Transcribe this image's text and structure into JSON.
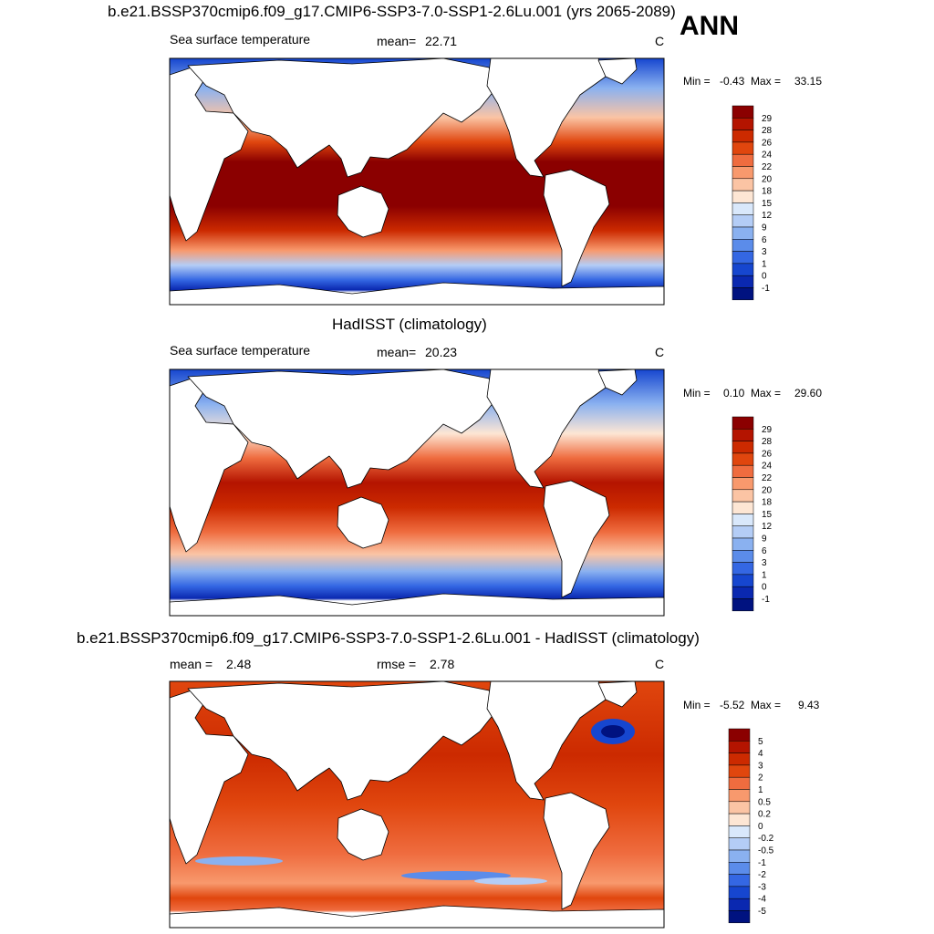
{
  "season_label": "ANN",
  "chart_data": [
    {
      "type": "heatmap",
      "title": "b.e21.BSSP370cmip6.f09_g17.CMIP6-SSP3-7.0-SSP1-2.6Lu.001 (yrs 2065-2089)",
      "variable": "Sea surface temperature",
      "stat_label": "mean=",
      "stat_value": "22.71",
      "units": "C",
      "min_label": "Min =",
      "min_value": "-0.43",
      "max_label": "Max =",
      "max_value": "33.15",
      "levels": [
        "29",
        "28",
        "26",
        "24",
        "22",
        "20",
        "18",
        "15",
        "12",
        "9",
        "6",
        "3",
        "1",
        "0",
        "-1"
      ],
      "colors": [
        "#8b0000",
        "#b41400",
        "#cc2a00",
        "#e0460e",
        "#ef6c3f",
        "#f8996d",
        "#fbc4a4",
        "#fde6d4",
        "#d9e8fb",
        "#b4cdf6",
        "#8ab1f0",
        "#5b8cea",
        "#3467e3",
        "#1646cf",
        "#0a28b0",
        "#001280"
      ]
    },
    {
      "type": "heatmap",
      "title": "HadISST (climatology)",
      "variable": "Sea surface temperature",
      "stat_label": "mean=",
      "stat_value": "20.23",
      "units": "C",
      "min_label": "Min =",
      "min_value": "0.10",
      "max_label": "Max =",
      "max_value": "29.60",
      "levels": [
        "29",
        "28",
        "26",
        "24",
        "22",
        "20",
        "18",
        "15",
        "12",
        "9",
        "6",
        "3",
        "1",
        "0",
        "-1"
      ],
      "colors": [
        "#8b0000",
        "#b41400",
        "#cc2a00",
        "#e0460e",
        "#ef6c3f",
        "#f8996d",
        "#fbc4a4",
        "#fde6d4",
        "#d9e8fb",
        "#b4cdf6",
        "#8ab1f0",
        "#5b8cea",
        "#3467e3",
        "#1646cf",
        "#0a28b0",
        "#001280"
      ]
    },
    {
      "type": "heatmap",
      "title": "b.e21.BSSP370cmip6.f09_g17.CMIP6-SSP3-7.0-SSP1-2.6Lu.001 - HadISST (climatology)",
      "variable": "",
      "mean_label": "mean =",
      "mean_value": "2.48",
      "stat_label": "rmse =",
      "stat_value": "2.78",
      "units": "C",
      "min_label": "Min =",
      "min_value": "-5.52",
      "max_label": "Max =",
      "max_value": "9.43",
      "levels": [
        "5",
        "4",
        "3",
        "2",
        "1",
        "0.5",
        "0.2",
        "0",
        "-0.2",
        "-0.5",
        "-1",
        "-2",
        "-3",
        "-4",
        "-5"
      ],
      "colors": [
        "#8b0000",
        "#b41400",
        "#cc2a00",
        "#e0460e",
        "#ef6c3f",
        "#f8996d",
        "#fbc4a4",
        "#fde6d4",
        "#d9e8fb",
        "#b4cdf6",
        "#8ab1f0",
        "#5b8cea",
        "#3467e3",
        "#1646cf",
        "#0a28b0",
        "#001280"
      ]
    }
  ]
}
